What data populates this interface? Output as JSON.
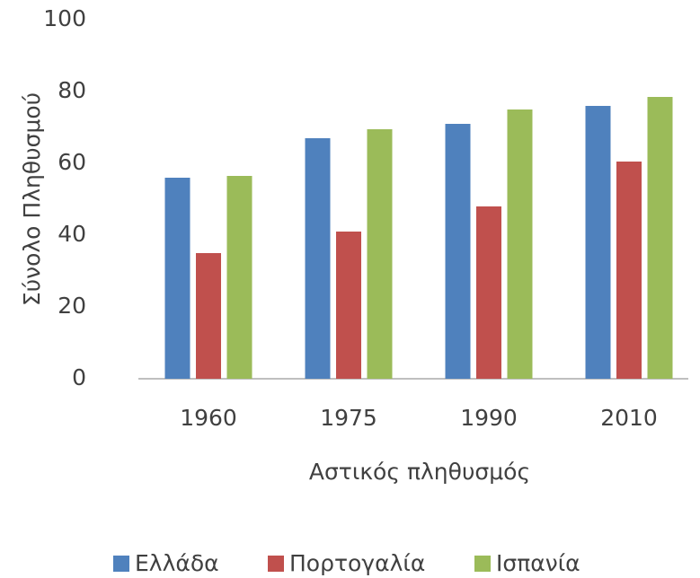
{
  "chart_data": {
    "type": "bar",
    "y_axis_label": "Σύνολο Πληθυσμού",
    "x_axis_label": "Αστικός πληθυσμός",
    "categories": [
      "1960",
      "1975",
      "1990",
      "2010"
    ],
    "series": [
      {
        "name": "Ελλάδα",
        "color": "#4f81bd",
        "values": [
          56,
          67,
          71,
          76
        ]
      },
      {
        "name": "Πορτογαλία",
        "color": "#c0504d",
        "values": [
          35,
          41,
          48,
          60.5
        ]
      },
      {
        "name": "Ισπανία",
        "color": "#9bbb59",
        "values": [
          56.5,
          69.5,
          75,
          78.5
        ]
      }
    ],
    "ylim": [
      0,
      100
    ],
    "yticks": [
      0,
      20,
      40,
      60,
      80,
      100
    ],
    "grid": false,
    "legend": "bottom"
  }
}
